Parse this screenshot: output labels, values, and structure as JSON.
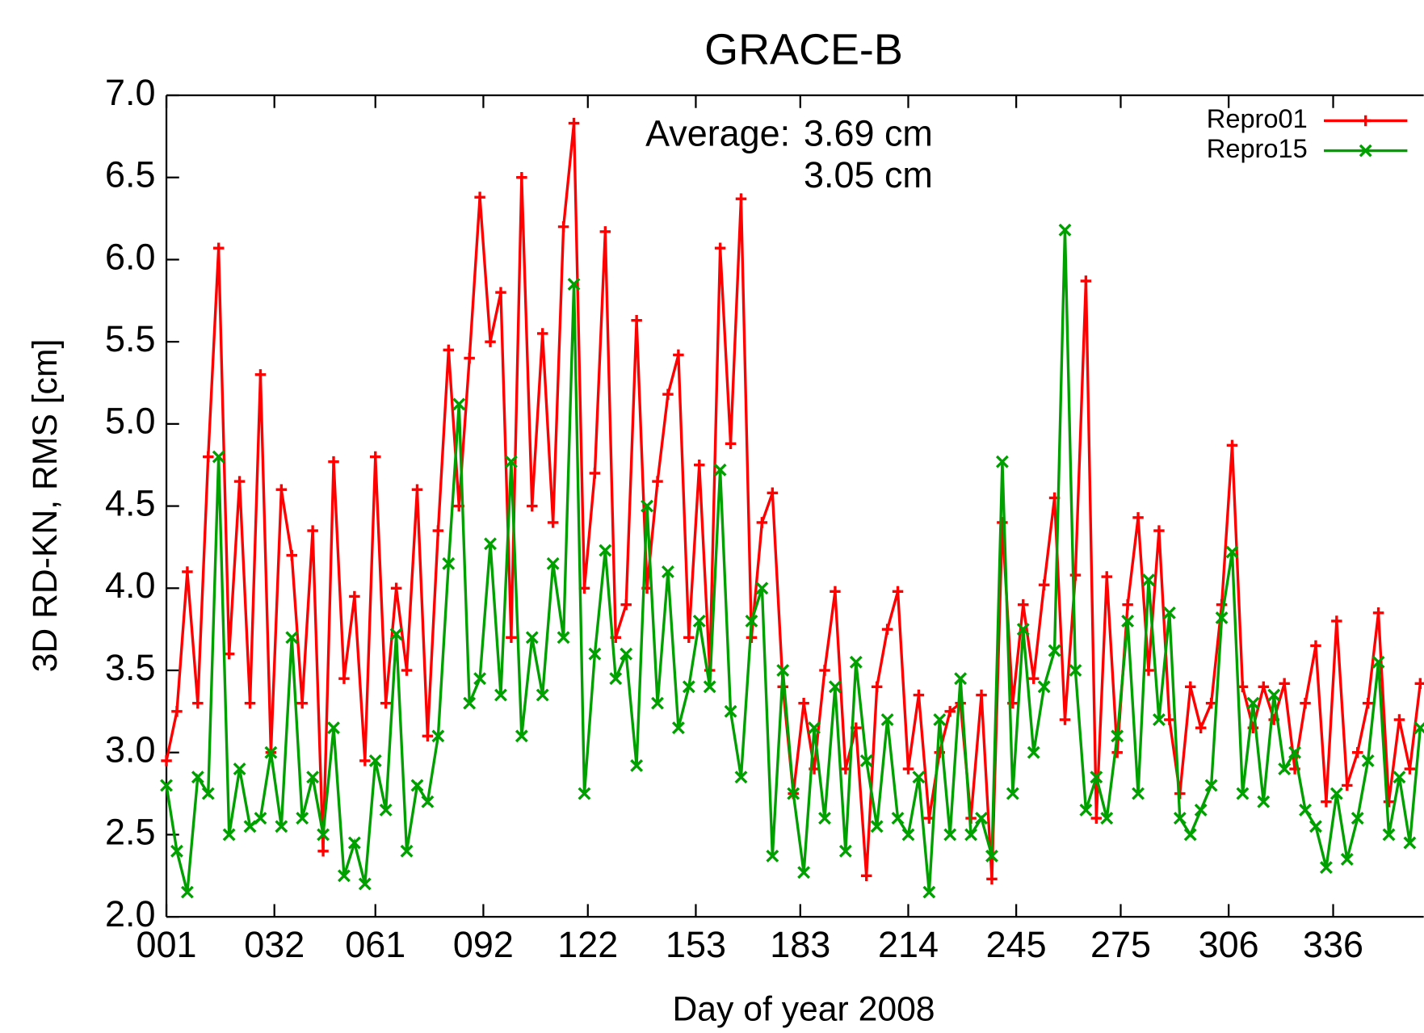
{
  "chart_data": {
    "type": "line",
    "title": "GRACE-B",
    "xlabel": "Day of year 2008",
    "ylabel": "3D RD-KN, RMS [cm]",
    "annotations": {
      "label": "Average:",
      "texts": [
        {
          "text": "3.69 cm",
          "color": "#ff0000"
        },
        {
          "text": "3.05 cm",
          "color": "#00a000"
        }
      ]
    },
    "legend": "top right",
    "x": [
      1,
      4,
      7,
      10,
      13,
      16,
      19,
      22,
      25,
      28,
      31,
      34,
      37,
      40,
      43,
      46,
      49,
      52,
      55,
      58,
      61,
      64,
      67,
      70,
      73,
      76,
      79,
      82,
      85,
      88,
      91,
      94,
      97,
      100,
      103,
      106,
      109,
      112,
      115,
      118,
      121,
      124,
      127,
      130,
      133,
      136,
      139,
      142,
      145,
      148,
      151,
      154,
      157,
      160,
      163,
      166,
      169,
      172,
      175,
      178,
      181,
      184,
      187,
      190,
      193,
      196,
      199,
      202,
      205,
      208,
      211,
      214,
      217,
      220,
      223,
      226,
      229,
      232,
      235,
      238,
      241,
      244,
      247,
      250,
      253,
      256,
      259,
      262,
      265,
      268,
      271,
      274,
      277,
      280,
      283,
      286,
      289,
      292,
      295,
      298,
      301,
      304,
      307,
      310,
      313,
      316,
      319,
      322,
      325,
      328,
      331,
      334,
      337,
      340,
      343,
      346,
      349,
      352,
      355,
      358,
      361
    ],
    "series": [
      {
        "name": "Repro01",
        "color": "#ff0000",
        "marker": "+",
        "values": [
          2.95,
          3.25,
          4.1,
          3.3,
          4.8,
          6.07,
          3.6,
          4.65,
          3.3,
          5.3,
          3.0,
          4.6,
          4.2,
          3.3,
          4.35,
          2.4,
          4.77,
          3.45,
          3.95,
          2.95,
          4.8,
          3.3,
          4.0,
          3.5,
          4.6,
          3.1,
          4.35,
          5.45,
          4.5,
          5.4,
          6.38,
          5.5,
          5.8,
          3.7,
          6.5,
          4.5,
          5.55,
          4.4,
          6.2,
          6.83,
          4.0,
          4.7,
          6.17,
          3.7,
          3.9,
          5.63,
          4.0,
          4.65,
          5.18,
          5.42,
          3.7,
          4.75,
          3.5,
          6.07,
          4.88,
          6.37,
          3.7,
          4.4,
          4.58,
          3.4,
          2.75,
          3.3,
          2.9,
          3.5,
          3.98,
          2.9,
          3.15,
          2.25,
          3.4,
          3.75,
          3.98,
          2.9,
          3.35,
          2.6,
          3.0,
          3.25,
          3.3,
          2.6,
          3.35,
          2.23,
          4.4,
          3.3,
          3.9,
          3.45,
          4.02,
          4.55,
          3.2,
          4.08,
          5.87,
          2.6,
          4.07,
          3.0,
          3.9,
          4.43,
          3.5,
          4.35,
          3.2,
          2.75,
          3.4,
          3.15,
          3.3,
          3.9,
          4.87,
          3.4,
          3.15,
          3.4,
          3.2,
          3.42,
          2.9,
          3.3,
          3.65,
          2.7,
          3.8,
          2.8,
          3.0,
          3.3,
          3.85,
          2.7,
          3.2,
          2.9,
          3.42
        ]
      },
      {
        "name": "Repro15",
        "color": "#00a000",
        "marker": "x",
        "values": [
          2.8,
          2.4,
          2.15,
          2.85,
          2.75,
          4.8,
          2.5,
          2.9,
          2.55,
          2.6,
          3.0,
          2.55,
          3.7,
          2.6,
          2.85,
          2.5,
          3.15,
          2.25,
          2.45,
          2.2,
          2.95,
          2.65,
          3.72,
          2.4,
          2.8,
          2.7,
          3.1,
          4.15,
          5.12,
          3.3,
          3.45,
          4.27,
          3.35,
          4.77,
          3.1,
          3.7,
          3.35,
          4.15,
          3.7,
          5.85,
          2.75,
          3.6,
          4.23,
          3.45,
          3.6,
          2.92,
          4.5,
          3.3,
          4.1,
          3.15,
          3.4,
          3.8,
          3.4,
          4.72,
          3.25,
          2.85,
          3.8,
          4.0,
          2.37,
          3.5,
          2.75,
          2.27,
          3.15,
          2.6,
          3.4,
          2.4,
          3.55,
          2.95,
          2.55,
          3.2,
          2.6,
          2.5,
          2.85,
          2.15,
          3.2,
          2.5,
          3.45,
          2.5,
          2.6,
          2.37,
          4.77,
          2.75,
          3.75,
          3.0,
          3.4,
          3.62,
          6.18,
          3.5,
          2.65,
          2.85,
          2.6,
          3.1,
          3.8,
          2.75,
          4.05,
          3.2,
          3.85,
          2.6,
          2.5,
          2.65,
          2.8,
          3.82,
          4.22,
          2.75,
          3.3,
          2.7,
          3.35,
          2.9,
          3.0,
          2.65,
          2.55,
          2.3,
          2.75,
          2.35,
          2.6,
          2.95,
          3.55,
          2.5,
          2.85,
          2.45,
          3.15
        ]
      }
    ],
    "xlim": [
      1,
      362
    ],
    "xticks": [
      {
        "value": 1,
        "label": "001"
      },
      {
        "value": 32,
        "label": "032"
      },
      {
        "value": 61,
        "label": "061"
      },
      {
        "value": 92,
        "label": "092"
      },
      122,
      153,
      183,
      214,
      245,
      275,
      306,
      336
    ],
    "ylim": [
      2,
      7
    ],
    "yticks": [
      {
        "value": 2,
        "label": "2.0"
      },
      2.5,
      {
        "value": 3,
        "label": "3.0"
      },
      3.5,
      {
        "value": 4,
        "label": "4.0"
      },
      4.5,
      {
        "value": 5,
        "label": "5.0"
      },
      5.5,
      {
        "value": 6,
        "label": "6.0"
      },
      6.5,
      {
        "value": 7,
        "label": "7.0"
      }
    ]
  }
}
